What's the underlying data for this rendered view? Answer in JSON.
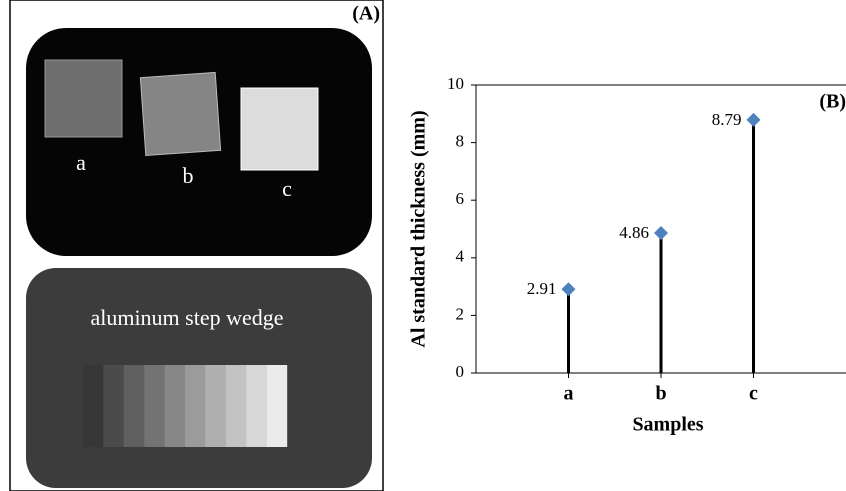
{
  "panel_a": {
    "label": "(A)",
    "sample_labels": [
      "a",
      "b",
      "c"
    ],
    "wedge_label": "aluminum step wedge"
  },
  "chart_data": {
    "type": "stem",
    "panel_label": "(B)",
    "x_label": "Samples",
    "y_label": "Al standard thickness (mm)",
    "categories": [
      "a",
      "b",
      "c"
    ],
    "values": [
      2.91,
      4.86,
      8.79
    ],
    "color": "#4f81bd",
    "ylim": [
      0,
      10
    ],
    "yticks": [
      0,
      2,
      4,
      6,
      8,
      10
    ]
  }
}
